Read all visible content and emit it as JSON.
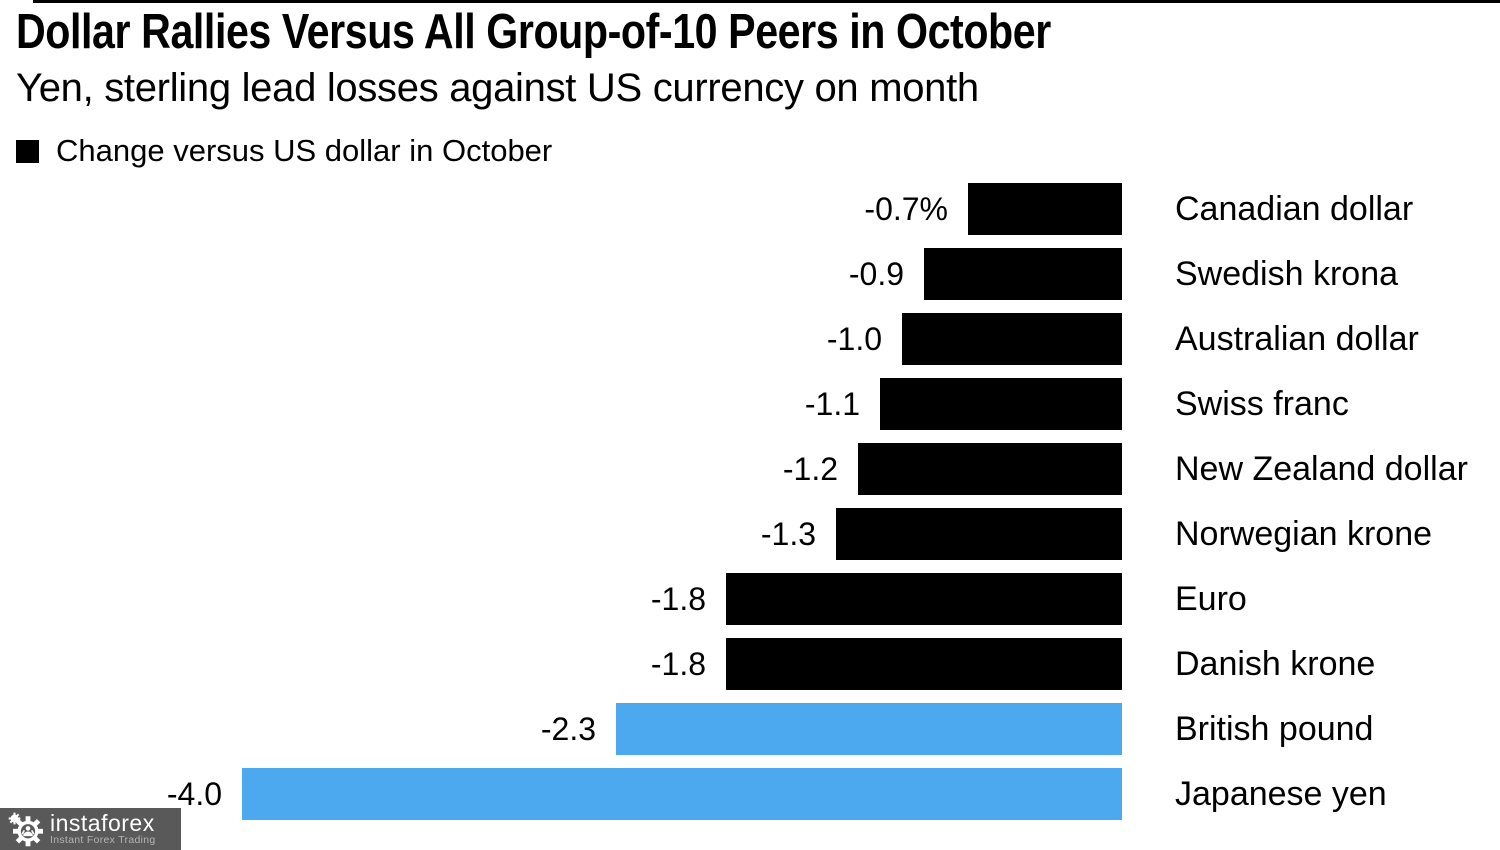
{
  "header": {
    "title": "Dollar Rallies Versus All Group-of-10 Peers in October",
    "subtitle": "Yen, sterling lead losses against US currency on month",
    "legend_label": "Change versus US dollar in October"
  },
  "colors": {
    "bar_default": "#000000",
    "bar_highlight": "#4da9ef",
    "legend_swatch": "#000000",
    "text": "#000000",
    "watermark_bg": "#595959",
    "watermark_brand_text": "#ffffff",
    "watermark_tagline_text": "#b4b4b4"
  },
  "chart_data": {
    "type": "bar",
    "orientation": "horizontal",
    "title": "Dollar Rallies Versus All Group-of-10 Peers in October",
    "subtitle": "Yen, sterling lead losses against US currency on month",
    "legend": [
      "Change versus US dollar in October"
    ],
    "legend_position": "top-left",
    "unit": "% change vs US dollar in October",
    "xlim": [
      -4.0,
      0
    ],
    "grid": false,
    "value_axis_labels_shown": "at bar ends",
    "rows": [
      {
        "label": "Canadian dollar",
        "value": -0.7,
        "value_label": "-0.7%",
        "highlight": false
      },
      {
        "label": "Swedish krona",
        "value": -0.9,
        "value_label": "-0.9",
        "highlight": false
      },
      {
        "label": "Australian dollar",
        "value": -1.0,
        "value_label": "-1.0",
        "highlight": false
      },
      {
        "label": "Swiss franc",
        "value": -1.1,
        "value_label": "-1.1",
        "highlight": false
      },
      {
        "label": "New Zealand dollar",
        "value": -1.2,
        "value_label": "-1.2",
        "highlight": false
      },
      {
        "label": "Norwegian krone",
        "value": -1.3,
        "value_label": "-1.3",
        "highlight": false
      },
      {
        "label": "Euro",
        "value": -1.8,
        "value_label": "-1.8",
        "highlight": false
      },
      {
        "label": "Danish krone",
        "value": -1.8,
        "value_label": "-1.8",
        "highlight": false
      },
      {
        "label": "British pound",
        "value": -2.3,
        "value_label": "-2.3",
        "highlight": true
      },
      {
        "label": "Japanese yen",
        "value": -4.0,
        "value_label": "-4.0",
        "highlight": true
      }
    ]
  },
  "watermark": {
    "brand": "instaforex",
    "tagline": "Instant Forex Trading"
  }
}
